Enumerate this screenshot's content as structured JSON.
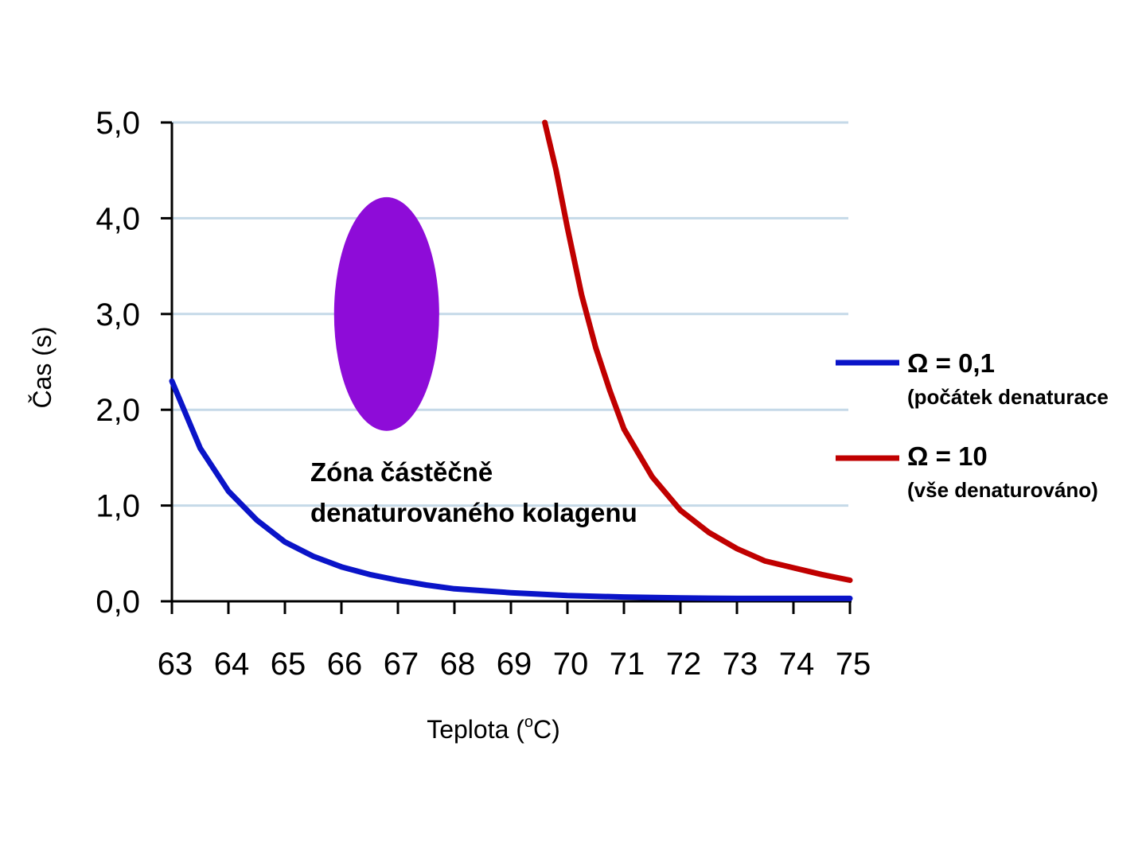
{
  "chart_data": {
    "type": "line",
    "xlabel": "Teplota (",
    "xlabel_sup": "o",
    "xlabel_unit": "C)",
    "ylabel": "Čas (s)",
    "xlim": [
      63,
      75
    ],
    "ylim": [
      0,
      5
    ],
    "x_ticks": [
      "63",
      "64",
      "65",
      "66",
      "67",
      "68",
      "69",
      "70",
      "71",
      "72",
      "73",
      "74",
      "75"
    ],
    "y_ticks": [
      {
        "value": 0,
        "label": "0,0"
      },
      {
        "value": 1,
        "label": "1,0"
      },
      {
        "value": 2,
        "label": "2,0"
      },
      {
        "value": 3,
        "label": "3,0"
      },
      {
        "value": 4,
        "label": "4,0"
      },
      {
        "value": 5,
        "label": "5,0"
      }
    ],
    "grid": "horizontal",
    "series": [
      {
        "name": "Ω = 0,1",
        "name_sub": "(počátek denaturace",
        "color": "#0a14c8",
        "points": [
          [
            63.0,
            2.3
          ],
          [
            63.5,
            1.6
          ],
          [
            64.0,
            1.15
          ],
          [
            64.5,
            0.85
          ],
          [
            65.0,
            0.62
          ],
          [
            65.5,
            0.47
          ],
          [
            66.0,
            0.36
          ],
          [
            66.5,
            0.28
          ],
          [
            67.0,
            0.22
          ],
          [
            67.5,
            0.17
          ],
          [
            68.0,
            0.13
          ],
          [
            69.0,
            0.09
          ],
          [
            70.0,
            0.06
          ],
          [
            71.0,
            0.045
          ],
          [
            72.0,
            0.035
          ],
          [
            73.0,
            0.03
          ],
          [
            74.0,
            0.03
          ],
          [
            75.0,
            0.03
          ]
        ]
      },
      {
        "name": "Ω = 10",
        "name_sub": "(vše denaturováno)",
        "color": "#c00000",
        "points": [
          [
            69.6,
            5.0
          ],
          [
            69.8,
            4.5
          ],
          [
            70.0,
            3.9
          ],
          [
            70.25,
            3.2
          ],
          [
            70.5,
            2.65
          ],
          [
            70.75,
            2.2
          ],
          [
            71.0,
            1.8
          ],
          [
            71.5,
            1.3
          ],
          [
            72.0,
            0.95
          ],
          [
            72.5,
            0.72
          ],
          [
            73.0,
            0.55
          ],
          [
            73.5,
            0.42
          ],
          [
            74.0,
            0.35
          ],
          [
            74.5,
            0.28
          ],
          [
            75.0,
            0.22
          ]
        ]
      }
    ],
    "annotations": [
      {
        "text_line1": "Zóna částěčně",
        "text_line2": "denaturovaného kolagenu"
      }
    ],
    "zone_ellipse": {
      "color": "#8e0cd8",
      "x_center": 66.8,
      "y_center": 3.0,
      "x_halfwidth": 0.93,
      "y_halfheight": 1.22
    },
    "legend_position": "right"
  }
}
